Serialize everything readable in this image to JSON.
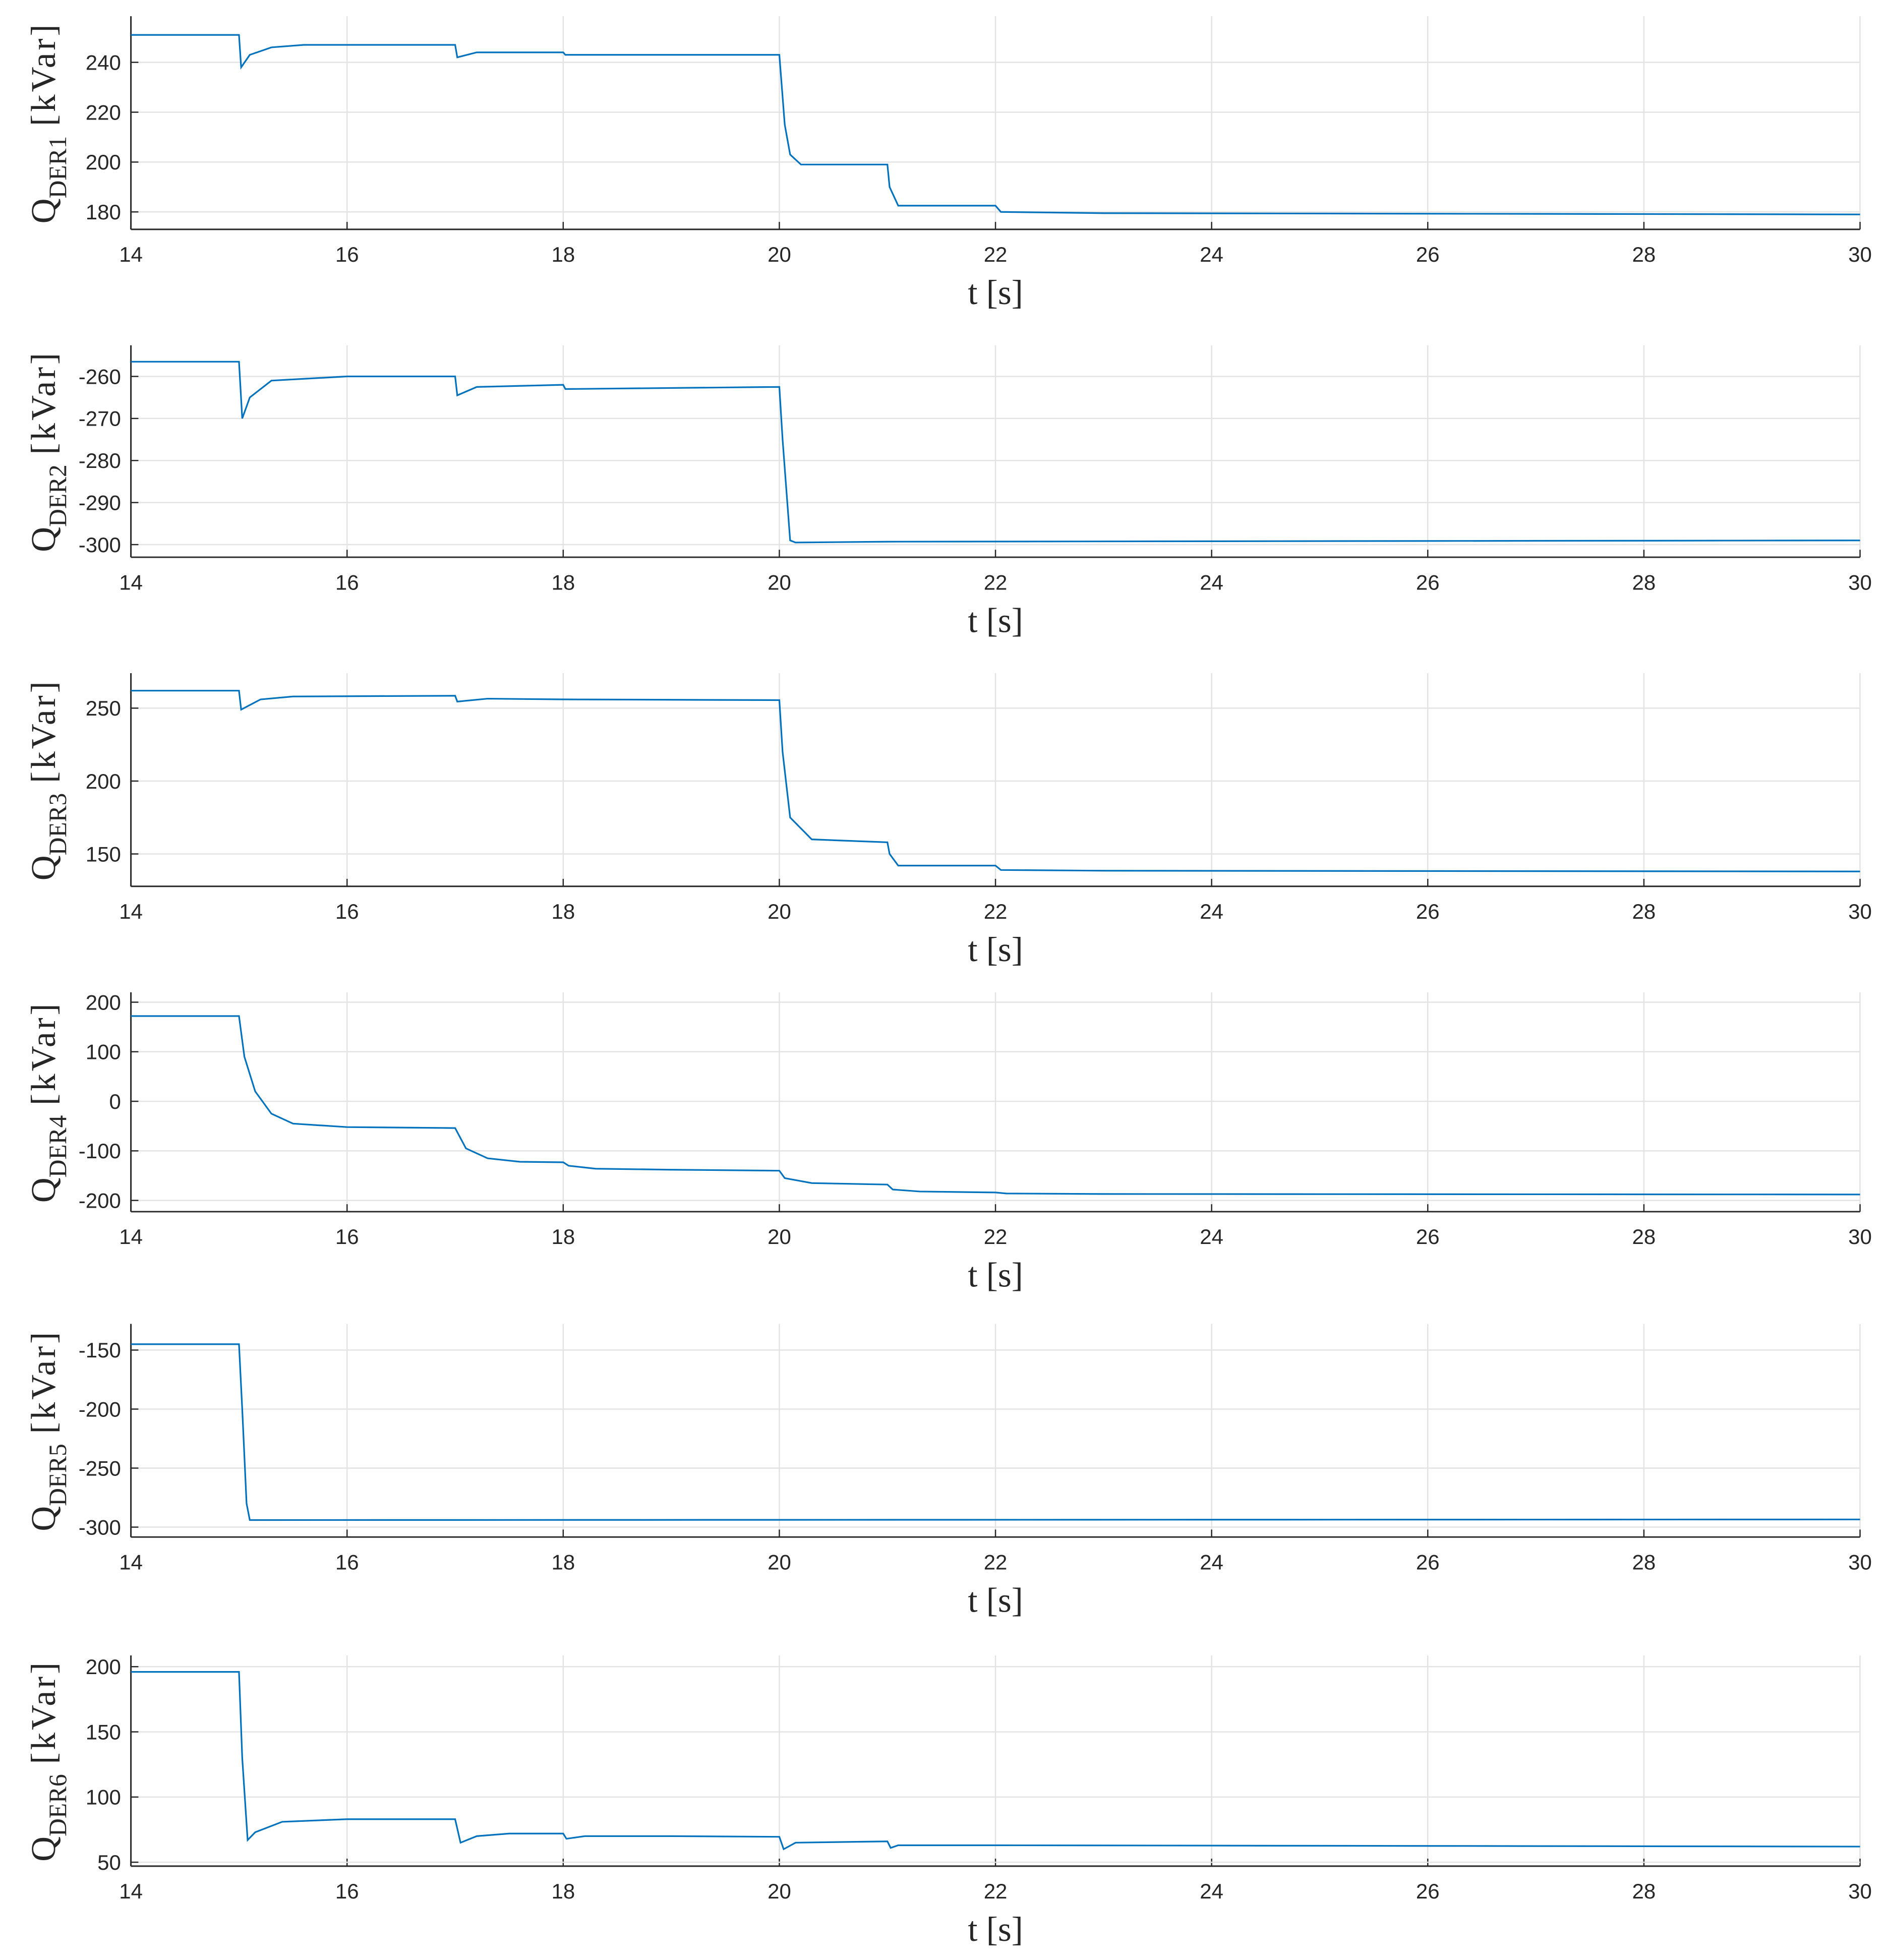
{
  "chart_data": [
    {
      "type": "line",
      "ylabel": [
        "Q",
        "DER1",
        "[kVar]"
      ],
      "xlabel": "t [s]",
      "color": "#0072bd",
      "grid": true,
      "xlim": [
        14,
        30
      ],
      "xticks": [
        14,
        16,
        18,
        20,
        22,
        24,
        26,
        28,
        30
      ],
      "ylim": [
        173,
        258.5
      ],
      "yticks": [
        180,
        200,
        220,
        240
      ],
      "x": [
        14,
        15,
        15.02,
        15.1,
        15.3,
        15.6,
        17,
        17.02,
        17.2,
        18,
        18.02,
        20,
        20.05,
        20.1,
        20.2,
        21,
        21.02,
        21.1,
        22,
        22.05,
        23,
        30
      ],
      "values": [
        251,
        251,
        238,
        243,
        246,
        247,
        247,
        242,
        244,
        244,
        243,
        243,
        215,
        203,
        199,
        199,
        190,
        182.5,
        182.5,
        180,
        179.5,
        179
      ]
    },
    {
      "type": "line",
      "ylabel": [
        "Q",
        "DER2",
        "[kVar]"
      ],
      "xlabel": "t [s]",
      "color": "#0072bd",
      "grid": true,
      "xlim": [
        14,
        30
      ],
      "xticks": [
        14,
        16,
        18,
        20,
        22,
        24,
        26,
        28,
        30
      ],
      "ylim": [
        -303,
        -252.6
      ],
      "yticks": [
        -300,
        -290,
        -280,
        -270,
        -260
      ],
      "x": [
        14,
        15,
        15.03,
        15.1,
        15.3,
        16,
        17,
        17.02,
        17.2,
        18,
        18.02,
        20,
        20.03,
        20.1,
        20.15,
        21,
        30
      ],
      "values": [
        -256.5,
        -256.5,
        -270,
        -265,
        -261,
        -260,
        -260,
        -264.5,
        -262.5,
        -262,
        -263,
        -262.5,
        -275,
        -299,
        -299.5,
        -299.3,
        -299
      ]
    },
    {
      "type": "line",
      "ylabel": [
        "Q",
        "DER3",
        "[kVar]"
      ],
      "xlabel": "t [s]",
      "color": "#0072bd",
      "grid": true,
      "xlim": [
        14,
        30
      ],
      "xticks": [
        14,
        16,
        18,
        20,
        22,
        24,
        26,
        28,
        30
      ],
      "ylim": [
        127.8,
        274
      ],
      "yticks": [
        150,
        200,
        250
      ],
      "x": [
        14,
        15,
        15.02,
        15.2,
        15.5,
        17,
        17.02,
        17.3,
        18,
        20,
        20.03,
        20.1,
        20.3,
        21,
        21.02,
        21.1,
        22,
        22.05,
        23,
        30
      ],
      "values": [
        262,
        262,
        249,
        256,
        258,
        258.5,
        254.5,
        256.5,
        256,
        255.5,
        220,
        175,
        160,
        158,
        150,
        142,
        142,
        139,
        138.5,
        138
      ]
    },
    {
      "type": "line",
      "ylabel": [
        "Q",
        "DER4",
        "[kVar]"
      ],
      "xlabel": "t [s]",
      "color": "#0072bd",
      "grid": true,
      "xlim": [
        14,
        30
      ],
      "xticks": [
        14,
        16,
        18,
        20,
        22,
        24,
        26,
        28,
        30
      ],
      "ylim": [
        -222.7,
        220
      ],
      "yticks": [
        -200,
        -100,
        0,
        100,
        200
      ],
      "x": [
        14,
        15,
        15.05,
        15.15,
        15.3,
        15.5,
        16,
        17,
        17.1,
        17.3,
        17.6,
        18,
        18.05,
        18.3,
        19,
        20,
        20.05,
        20.3,
        21,
        21.05,
        21.3,
        22,
        22.1,
        23,
        30
      ],
      "values": [
        172,
        172,
        90,
        20,
        -25,
        -45,
        -52,
        -54,
        -95,
        -115,
        -122,
        -123,
        -130,
        -136,
        -138,
        -140,
        -155,
        -165,
        -168,
        -178,
        -182,
        -184,
        -186,
        -187,
        -188
      ]
    },
    {
      "type": "line",
      "ylabel": [
        "Q",
        "DER5",
        "[kVar]"
      ],
      "xlabel": "t [s]",
      "color": "#0072bd",
      "grid": true,
      "xlim": [
        14,
        30
      ],
      "xticks": [
        14,
        16,
        18,
        20,
        22,
        24,
        26,
        28,
        30
      ],
      "ylim": [
        -308.4,
        -127.8
      ],
      "yticks": [
        -300,
        -250,
        -200,
        -150
      ],
      "x": [
        14,
        15,
        15.03,
        15.07,
        15.1,
        30
      ],
      "values": [
        -145,
        -145,
        -200,
        -280,
        -294,
        -293.5
      ]
    },
    {
      "type": "line",
      "ylabel": [
        "Q",
        "DER6",
        "[kVar]"
      ],
      "xlabel": "t [s]",
      "color": "#0072bd",
      "grid": true,
      "xlim": [
        14,
        30
      ],
      "xticks": [
        14,
        16,
        18,
        20,
        22,
        24,
        26,
        28,
        30
      ],
      "ylim": [
        47,
        208.6
      ],
      "yticks": [
        50,
        100,
        150,
        200
      ],
      "x": [
        14,
        15,
        15.03,
        15.08,
        15.15,
        15.4,
        16,
        17,
        17.05,
        17.2,
        17.5,
        18,
        18.03,
        18.2,
        19,
        20,
        20.04,
        20.15,
        21,
        21.03,
        21.1,
        22,
        30
      ],
      "values": [
        196,
        196,
        130,
        67,
        73,
        81,
        83,
        83,
        65,
        70,
        72,
        72,
        68,
        70,
        70,
        69.5,
        60,
        65,
        66,
        61,
        63,
        63,
        62
      ]
    }
  ]
}
